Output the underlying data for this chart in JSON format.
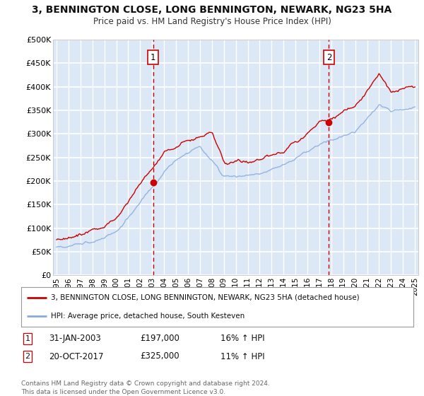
{
  "title": "3, BENNINGTON CLOSE, LONG BENNINGTON, NEWARK, NG23 5HA",
  "subtitle": "Price paid vs. HM Land Registry's House Price Index (HPI)",
  "background_color": "#ffffff",
  "plot_bg_color": "#dce8f5",
  "grid_color": "#ffffff",
  "ylim": [
    0,
    500000
  ],
  "yticks": [
    0,
    50000,
    100000,
    150000,
    200000,
    250000,
    300000,
    350000,
    400000,
    450000,
    500000
  ],
  "ytick_labels": [
    "£0",
    "£50K",
    "£100K",
    "£150K",
    "£200K",
    "£250K",
    "£300K",
    "£350K",
    "£400K",
    "£450K",
    "£500K"
  ],
  "sale1_date": 2003.08,
  "sale1_price": 197000,
  "sale1_label": "1",
  "sale1_date_str": "31-JAN-2003",
  "sale1_pct": "16%",
  "sale2_date": 2017.8,
  "sale2_price": 325000,
  "sale2_label": "2",
  "sale2_date_str": "20-OCT-2017",
  "sale2_pct": "11%",
  "legend_line1": "3, BENNINGTON CLOSE, LONG BENNINGTON, NEWARK, NG23 5HA (detached house)",
  "legend_line2": "HPI: Average price, detached house, South Kesteven",
  "footer": "Contains HM Land Registry data © Crown copyright and database right 2024.\nThis data is licensed under the Open Government Licence v3.0.",
  "line_color_red": "#cc0000",
  "line_color_blue": "#88aadd",
  "xtick_start": 1995,
  "xtick_end": 2025
}
